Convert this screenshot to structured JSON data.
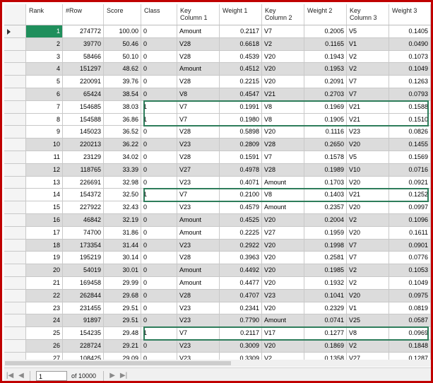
{
  "columns": [
    {
      "key": "rank",
      "label": "Rank",
      "align": "left"
    },
    {
      "key": "row",
      "label": "#Row",
      "align": "left"
    },
    {
      "key": "score",
      "label": "Score",
      "align": "left"
    },
    {
      "key": "class",
      "label": "Class",
      "align": "left"
    },
    {
      "key": "key1",
      "label": "Key\nColumn 1",
      "align": "left"
    },
    {
      "key": "w1",
      "label": "Weight 1",
      "align": "left"
    },
    {
      "key": "key2",
      "label": "Key\nColumn 2",
      "align": "left"
    },
    {
      "key": "w2",
      "label": "Weight 2",
      "align": "left"
    },
    {
      "key": "key3",
      "label": "Key\nColumn 3",
      "align": "left"
    },
    {
      "key": "w3",
      "label": "Weight 3",
      "align": "left"
    }
  ],
  "rows": [
    [
      "1",
      "274772",
      "100.00",
      "0",
      "Amount",
      "0.2117",
      "V7",
      "0.2005",
      "V5",
      "0.1405"
    ],
    [
      "2",
      "39770",
      "50.46",
      "0",
      "V28",
      "0.6618",
      "V2",
      "0.1165",
      "V1",
      "0.0490"
    ],
    [
      "3",
      "58466",
      "50.10",
      "0",
      "V28",
      "0.4539",
      "V20",
      "0.1943",
      "V2",
      "0.1073"
    ],
    [
      "4",
      "151297",
      "48.62",
      "0",
      "Amount",
      "0.4512",
      "V20",
      "0.1953",
      "V2",
      "0.1049"
    ],
    [
      "5",
      "220091",
      "39.76",
      "0",
      "V28",
      "0.2215",
      "V20",
      "0.2091",
      "V7",
      "0.1263"
    ],
    [
      "6",
      "65424",
      "38.54",
      "0",
      "V8",
      "0.4547",
      "V21",
      "0.2703",
      "V7",
      "0.0793"
    ],
    [
      "7",
      "154685",
      "38.03",
      "1",
      "V7",
      "0.1991",
      "V8",
      "0.1969",
      "V21",
      "0.1588"
    ],
    [
      "8",
      "154588",
      "36.86",
      "1",
      "V7",
      "0.1980",
      "V8",
      "0.1905",
      "V21",
      "0.1510"
    ],
    [
      "9",
      "145023",
      "36.52",
      "0",
      "V28",
      "0.5898",
      "V20",
      "0.1116",
      "V23",
      "0.0826"
    ],
    [
      "10",
      "220213",
      "36.22",
      "0",
      "V23",
      "0.2809",
      "V28",
      "0.2650",
      "V20",
      "0.1455"
    ],
    [
      "11",
      "23129",
      "34.02",
      "0",
      "V28",
      "0.1591",
      "V7",
      "0.1578",
      "V5",
      "0.1569"
    ],
    [
      "12",
      "118765",
      "33.39",
      "0",
      "V27",
      "0.4978",
      "V28",
      "0.1989",
      "V10",
      "0.0716"
    ],
    [
      "13",
      "226691",
      "32.98",
      "0",
      "V23",
      "0.4071",
      "Amount",
      "0.1703",
      "V20",
      "0.0921"
    ],
    [
      "14",
      "154372",
      "32.50",
      "1",
      "V7",
      "0.2100",
      "V8",
      "0.1403",
      "V21",
      "0.1252"
    ],
    [
      "15",
      "227922",
      "32.43",
      "0",
      "V23",
      "0.4579",
      "Amount",
      "0.2357",
      "V20",
      "0.0997"
    ],
    [
      "16",
      "46842",
      "32.19",
      "0",
      "Amount",
      "0.4525",
      "V20",
      "0.2004",
      "V2",
      "0.1096"
    ],
    [
      "17",
      "74700",
      "31.86",
      "0",
      "Amount",
      "0.2225",
      "V27",
      "0.1959",
      "V20",
      "0.1611"
    ],
    [
      "18",
      "173354",
      "31.44",
      "0",
      "V23",
      "0.2922",
      "V20",
      "0.1998",
      "V7",
      "0.0901"
    ],
    [
      "19",
      "195219",
      "30.14",
      "0",
      "V28",
      "0.3963",
      "V20",
      "0.2581",
      "V7",
      "0.0776"
    ],
    [
      "20",
      "54019",
      "30.01",
      "0",
      "Amount",
      "0.4492",
      "V20",
      "0.1985",
      "V2",
      "0.1053"
    ],
    [
      "21",
      "169458",
      "29.99",
      "0",
      "Amount",
      "0.4477",
      "V20",
      "0.1932",
      "V2",
      "0.1049"
    ],
    [
      "22",
      "262844",
      "29.68",
      "0",
      "V28",
      "0.4707",
      "V23",
      "0.1041",
      "V20",
      "0.0975"
    ],
    [
      "23",
      "231455",
      "29.51",
      "0",
      "V23",
      "0.2341",
      "V20",
      "0.2329",
      "V1",
      "0.0819"
    ],
    [
      "24",
      "91897",
      "29.51",
      "0",
      "V23",
      "0.7790",
      "Amount",
      "0.0741",
      "V25",
      "0.0587"
    ],
    [
      "25",
      "154235",
      "29.48",
      "1",
      "V7",
      "0.2117",
      "V17",
      "0.1277",
      "V8",
      "0.0969"
    ],
    [
      "26",
      "228724",
      "29.21",
      "0",
      "V23",
      "0.3009",
      "V20",
      "0.1869",
      "V2",
      "0.1848"
    ],
    [
      "27",
      "108425",
      "29.09",
      "0",
      "V23",
      "0.3309",
      "V2",
      "0.1358",
      "V27",
      "0.1287"
    ]
  ],
  "highlighted_ranks": [
    "7",
    "8",
    "14",
    "25"
  ],
  "selected_rank": "1",
  "navigator": {
    "current_page": "1",
    "of_label": "of 10000"
  },
  "colors": {
    "highlight_border": "#2e7d5b",
    "selected_cell": "#1f8f5c",
    "frame": "#c00000"
  }
}
